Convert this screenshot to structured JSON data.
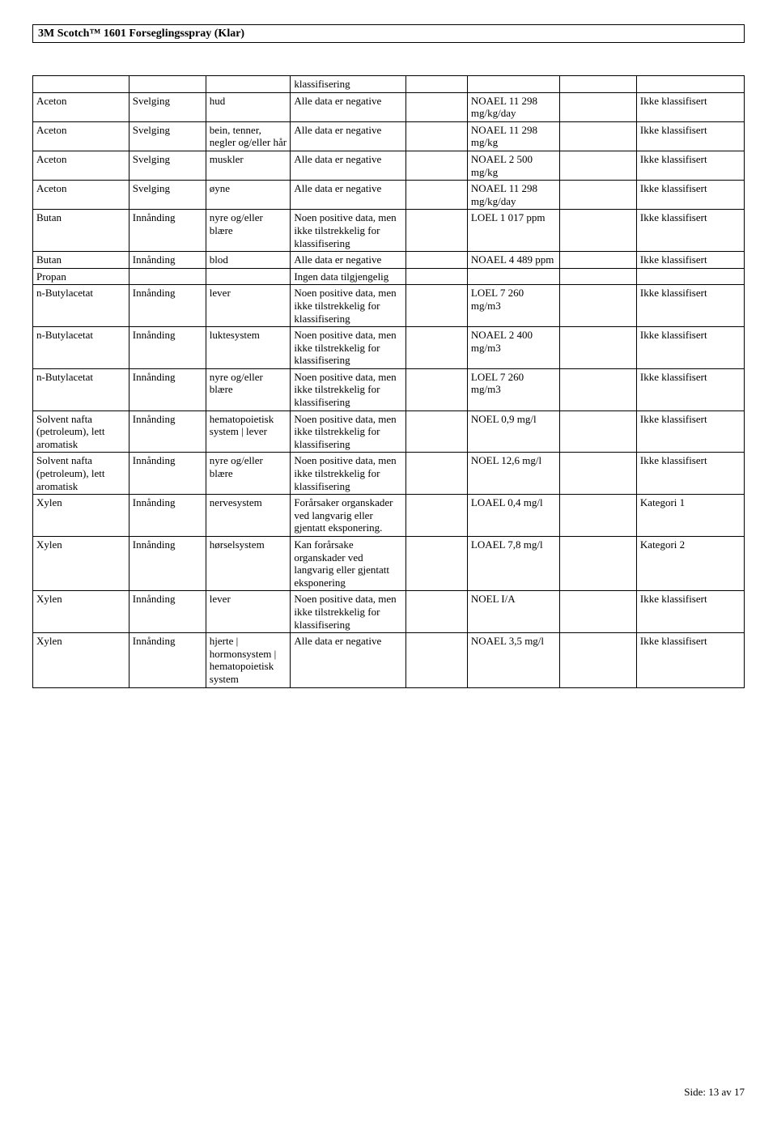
{
  "header": {
    "title": "3M Scotch™ 1601 Forseglingsspray (Klar)"
  },
  "table": {
    "col_widths": [
      "12.5%",
      "10%",
      "11%",
      "15%",
      "8%",
      "12%",
      "10%",
      "14%"
    ],
    "rows": [
      [
        "",
        "",
        "",
        "klassifisering",
        "",
        "",
        "",
        ""
      ],
      [
        "Aceton",
        "Svelging",
        "hud",
        "Alle data er negative",
        "",
        "NOAEL 11 298 mg/kg/day",
        "",
        "Ikke klassifisert"
      ],
      [
        "Aceton",
        "Svelging",
        "bein, tenner, negler og/eller hår",
        "Alle data er negative",
        "",
        "NOAEL 11 298 mg/kg",
        "",
        "Ikke klassifisert"
      ],
      [
        "Aceton",
        "Svelging",
        "muskler",
        "Alle data er negative",
        "",
        "NOAEL 2 500 mg/kg",
        "",
        "Ikke klassifisert"
      ],
      [
        "Aceton",
        "Svelging",
        "øyne",
        "Alle data er negative",
        "",
        "NOAEL 11 298 mg/kg/day",
        "",
        "Ikke klassifisert"
      ],
      [
        "Butan",
        "Innånding",
        "nyre og/eller blære",
        "Noen positive data, men ikke tilstrekkelig for klassifisering",
        "",
        "LOEL 1 017 ppm",
        "",
        "Ikke klassifisert"
      ],
      [
        "Butan",
        "Innånding",
        "blod",
        "Alle data er negative",
        "",
        "NOAEL 4 489 ppm",
        "",
        "Ikke klassifisert"
      ],
      [
        "Propan",
        "",
        "",
        "Ingen data tilgjengelig",
        "",
        "",
        "",
        ""
      ],
      [
        "n-Butylacetat",
        "Innånding",
        "lever",
        "Noen positive data, men ikke tilstrekkelig for klassifisering",
        "",
        "LOEL 7 260 mg/m3",
        "",
        "Ikke klassifisert"
      ],
      [
        "n-Butylacetat",
        "Innånding",
        "luktesystem",
        "Noen positive data, men ikke tilstrekkelig for klassifisering",
        "",
        "NOAEL 2 400 mg/m3",
        "",
        "Ikke klassifisert"
      ],
      [
        "n-Butylacetat",
        "Innånding",
        "nyre og/eller blære",
        "Noen positive data, men ikke tilstrekkelig for klassifisering",
        "",
        "LOEL 7 260 mg/m3",
        "",
        "Ikke klassifisert"
      ],
      [
        "Solvent nafta (petroleum), lett aromatisk",
        "Innånding",
        "hematopoietisk system | lever",
        "Noen positive data, men ikke tilstrekkelig for klassifisering",
        "",
        "NOEL 0,9 mg/l",
        "",
        "Ikke klassifisert"
      ],
      [
        "Solvent nafta (petroleum), lett aromatisk",
        "Innånding",
        "nyre og/eller blære",
        "Noen positive data, men ikke tilstrekkelig for klassifisering",
        "",
        "NOEL 12,6 mg/l",
        "",
        "Ikke klassifisert"
      ],
      [
        "Xylen",
        "Innånding",
        "nervesystem",
        "Forårsaker organskader ved langvarig eller gjentatt eksponering.",
        "",
        "LOAEL 0,4 mg/l",
        "",
        "Kategori 1"
      ],
      [
        "Xylen",
        "Innånding",
        "hørselsystem",
        "Kan forårsake organskader ved langvarig eller gjentatt eksponering",
        "",
        "LOAEL 7,8 mg/l",
        "",
        "Kategori 2"
      ],
      [
        "Xylen",
        "Innånding",
        "lever",
        "Noen positive data, men ikke tilstrekkelig for klassifisering",
        "",
        "NOEL I/A",
        "",
        "Ikke klassifisert"
      ],
      [
        "Xylen",
        "Innånding",
        "hjerte | hormonsystem | hematopoietisk system",
        "Alle data er negative",
        "",
        "NOAEL 3,5 mg/l",
        "",
        "Ikke klassifisert"
      ]
    ]
  },
  "footer": {
    "text": "Side: 13 av  17"
  }
}
